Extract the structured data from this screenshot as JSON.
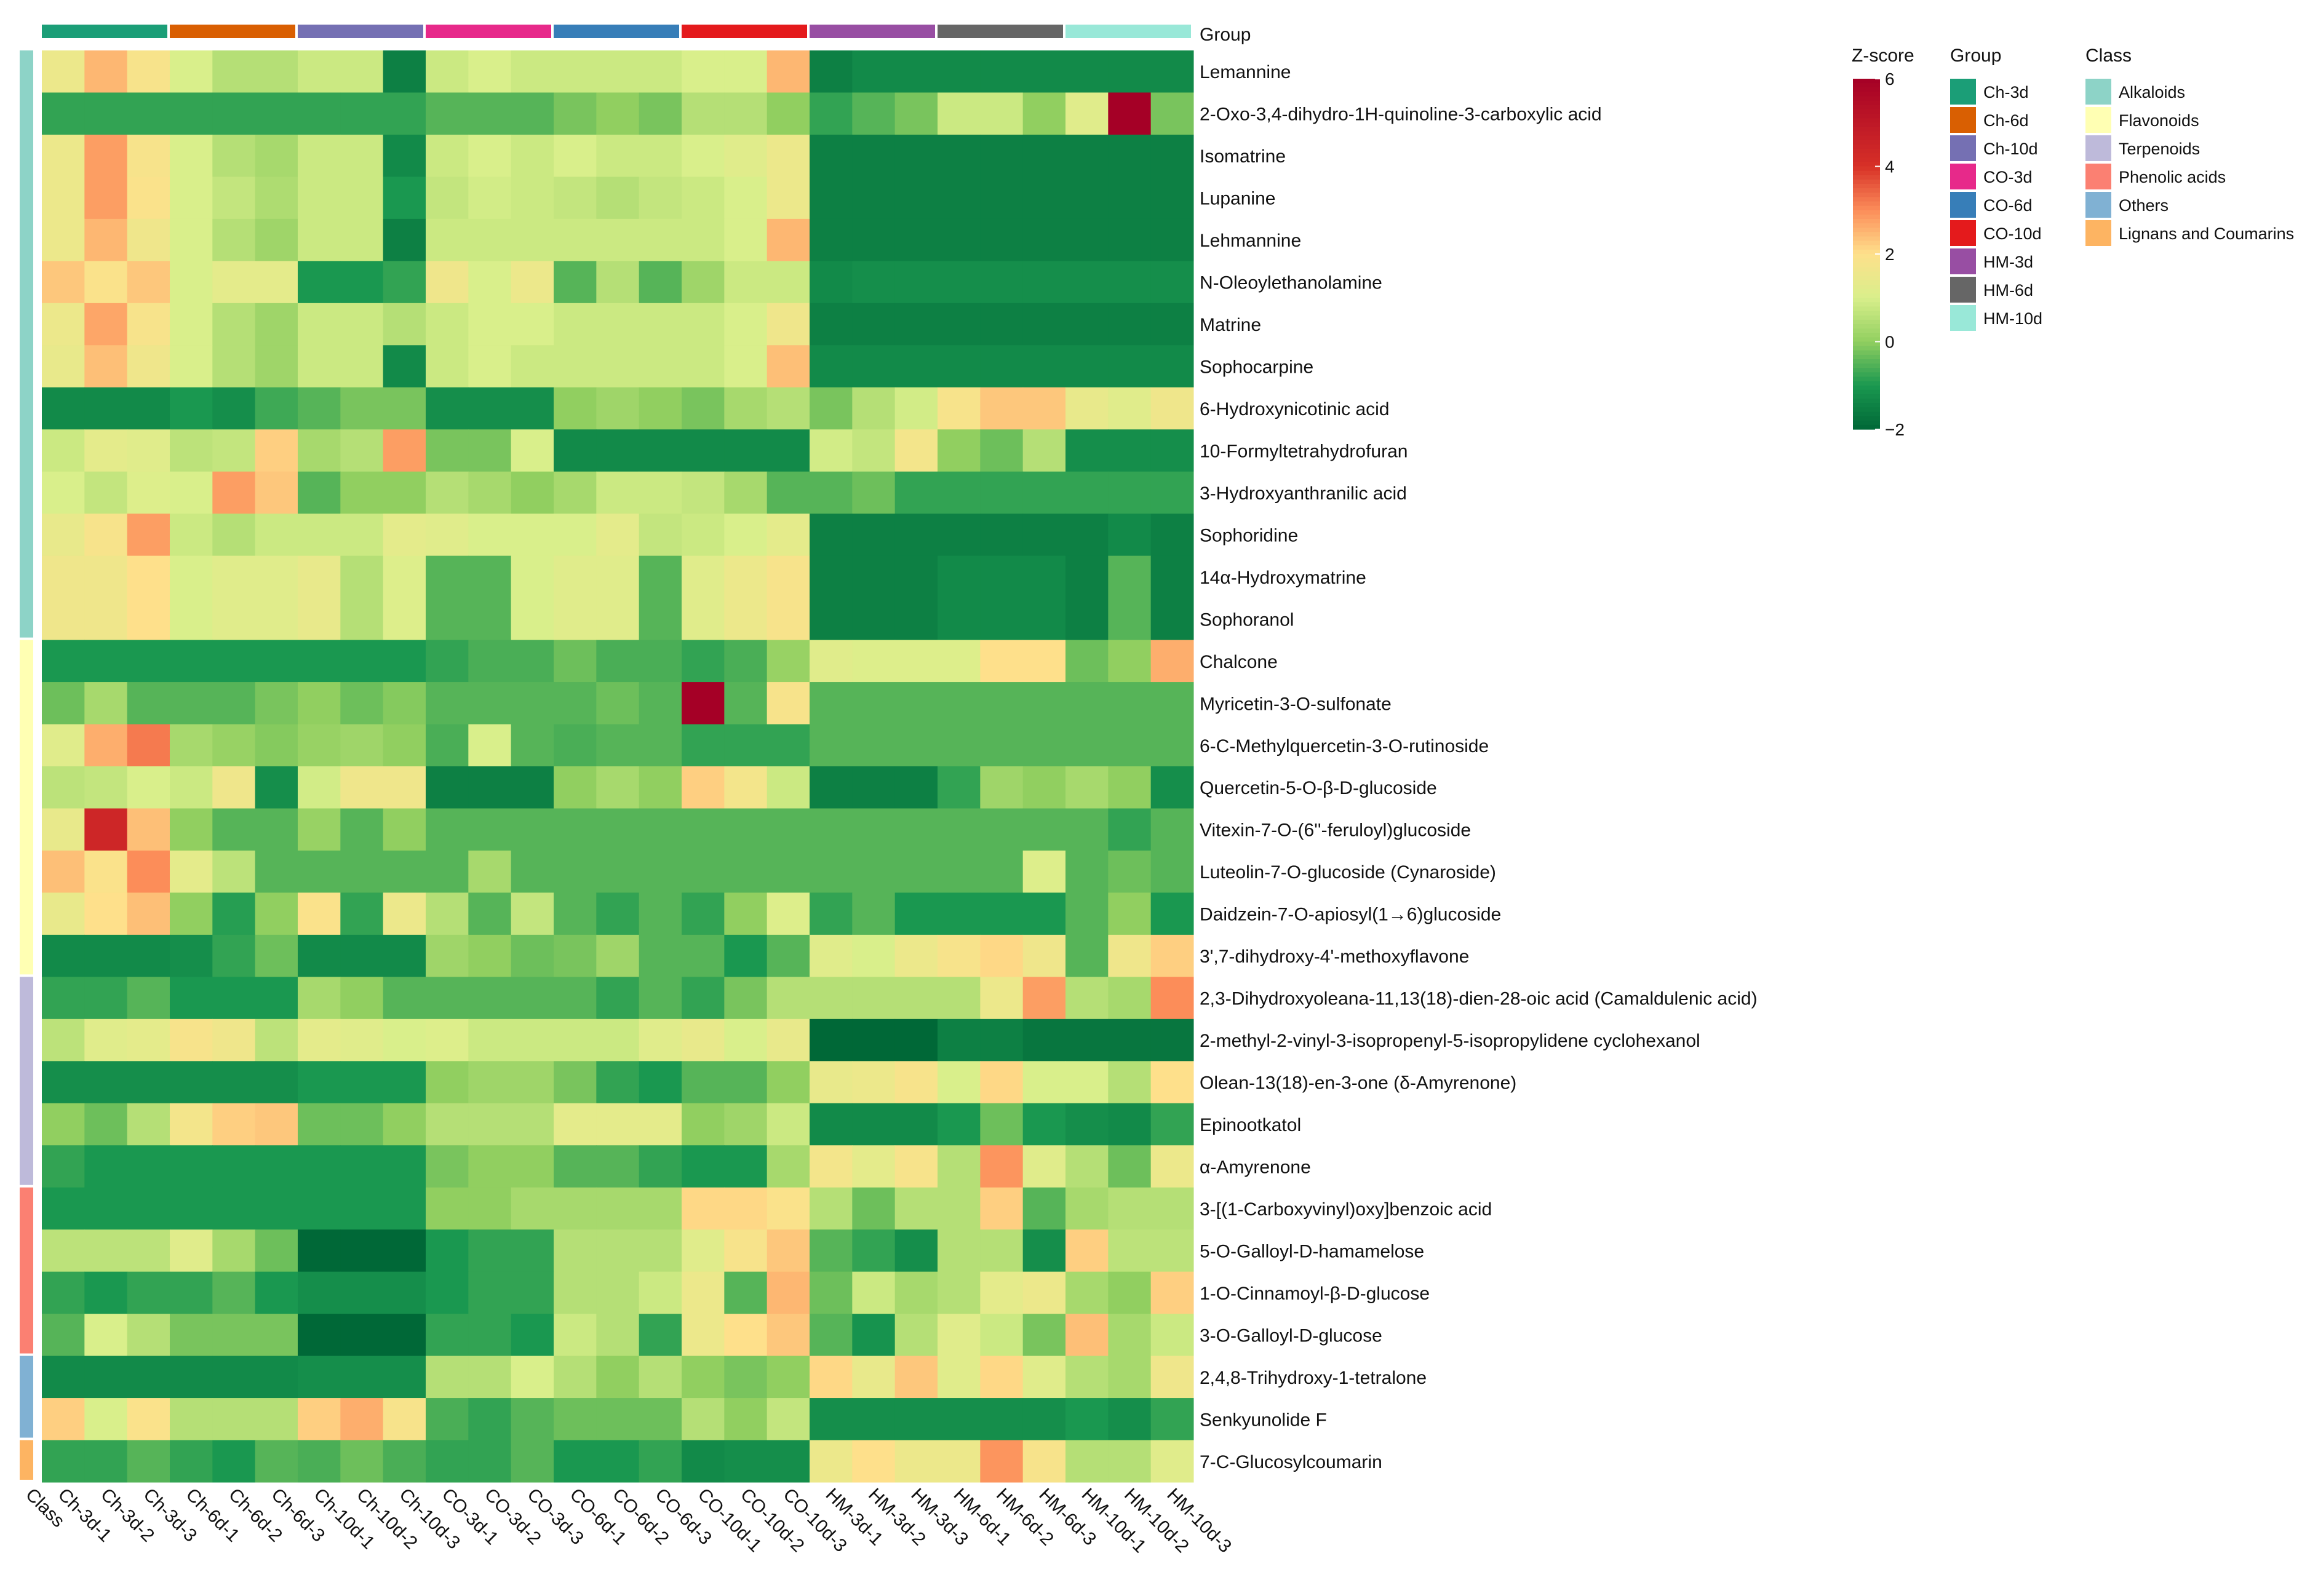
{
  "chart_data": {
    "type": "heatmap",
    "title": "",
    "columns": [
      "Ch-3d-1",
      "Ch-3d-2",
      "Ch-3d-3",
      "Ch-6d-1",
      "Ch-6d-2",
      "Ch-6d-3",
      "Ch-10d-1",
      "Ch-10d-2",
      "Ch-10d-3",
      "CO-3d-1",
      "CO-3d-2",
      "CO-3d-3",
      "CO-6d-1",
      "CO-6d-2",
      "CO-6d-3",
      "CO-10d-1",
      "CO-10d-2",
      "CO-10d-3",
      "HM-3d-1",
      "HM-3d-2",
      "HM-3d-3",
      "HM-6d-1",
      "HM-6d-2",
      "HM-6d-3",
      "HM-10d-1",
      "HM-10d-2",
      "HM-10d-3"
    ],
    "class_axis_label": "Class",
    "group_annotation_label": "Group",
    "column_groups": [
      "Ch-3d",
      "Ch-6d",
      "Ch-10d",
      "CO-3d",
      "CO-6d",
      "CO-10d",
      "HM-3d",
      "HM-6d",
      "HM-10d"
    ],
    "rows": [
      "Lemannine",
      "2-Oxo-3,4-dihydro-1H-quinoline-3-carboxylic acid",
      "Isomatrine",
      "Lupanine",
      "Lehmannine",
      "N-Oleoylethanolamine",
      "Matrine",
      "Sophocarpine",
      "6-Hydroxynicotinic acid",
      "10-Formyltetrahydrofuran",
      "3-Hydroxyanthranilic acid",
      "Sophoridine",
      "14α-Hydroxymatrine",
      "Sophoranol",
      "Chalcone",
      "Myricetin-3-O-sulfonate",
      "6-C-Methylquercetin-3-O-rutinoside",
      "Quercetin-5-O-β-D-glucoside",
      "Vitexin-7-O-(6''-feruloyl)glucoside",
      "Luteolin-7-O-glucoside (Cynaroside)",
      "Daidzein-7-O-apiosyl(1→6)glucoside",
      "3',7-dihydroxy-4'-methoxyflavone",
      "2,3-Dihydroxyoleana-11,13(18)-dien-28-oic acid (Camaldulenic acid)",
      "2-methyl-2-vinyl-3-isopropenyl-5-isopropylidene cyclohexanol",
      "Olean-13(18)-en-3-one (δ-Amyrenone)",
      "Epinootkatol",
      "α-Amyrenone",
      "3-[(1-Carboxyvinyl)oxy]benzoic acid",
      "5-O-Galloyl-D-hamamelose",
      "1-O-Cinnamoyl-β-D-glucose",
      "3-O-Galloyl-D-glucose",
      "2,4,8-Trihydroxy-1-tetralone",
      "Senkyunolide F",
      "7-C-Glucosylcoumarin"
    ],
    "row_classes": [
      "Alkaloids",
      "Alkaloids",
      "Alkaloids",
      "Alkaloids",
      "Alkaloids",
      "Alkaloids",
      "Alkaloids",
      "Alkaloids",
      "Alkaloids",
      "Alkaloids",
      "Alkaloids",
      "Alkaloids",
      "Alkaloids",
      "Alkaloids",
      "Flavonoids",
      "Flavonoids",
      "Flavonoids",
      "Flavonoids",
      "Flavonoids",
      "Flavonoids",
      "Flavonoids",
      "Flavonoids",
      "Terpenoids",
      "Terpenoids",
      "Terpenoids",
      "Terpenoids",
      "Terpenoids",
      "Phenolic acids",
      "Phenolic acids",
      "Phenolic acids",
      "Phenolic acids",
      "Others",
      "Others",
      "Lignans and Coumarins"
    ],
    "values": [
      [
        1.5,
        2.5,
        1.8,
        1,
        0.5,
        0.5,
        0.8,
        0.8,
        -1.5,
        0.8,
        1,
        0.8,
        0.8,
        0.8,
        0.8,
        1,
        1,
        2.5,
        -1.5,
        -1.3,
        -1.3,
        -1.3,
        -1.3,
        -1.3,
        -1.3,
        -1.3,
        -1.3
      ],
      [
        -0.8,
        -0.8,
        -0.8,
        -0.8,
        -0.8,
        -0.8,
        -0.8,
        -0.8,
        -0.8,
        -0.5,
        -0.5,
        -0.5,
        -0.2,
        0,
        -0.2,
        0.5,
        0.5,
        0,
        -0.8,
        -0.5,
        -0.2,
        0.8,
        0.8,
        0,
        1.2,
        6,
        -0.2
      ],
      [
        1.5,
        2.8,
        1.8,
        1,
        0.5,
        0.3,
        0.8,
        0.8,
        -1.3,
        0.8,
        1,
        0.8,
        1,
        0.8,
        0.8,
        1,
        1.2,
        1.5,
        -1.5,
        -1.5,
        -1.5,
        -1.5,
        -1.5,
        -1.5,
        -1.5,
        -1.5,
        -1.5
      ],
      [
        1.5,
        2.8,
        1.9,
        1,
        0.7,
        0.4,
        0.8,
        0.8,
        -1,
        0.7,
        0.9,
        0.8,
        0.7,
        0.5,
        0.7,
        0.8,
        1,
        1.5,
        -1.5,
        -1.5,
        -1.5,
        -1.5,
        -1.5,
        -1.5,
        -1.5,
        -1.5,
        -1.5
      ],
      [
        1.5,
        2.5,
        1.6,
        1,
        0.5,
        0.2,
        0.8,
        0.8,
        -1.5,
        0.8,
        0.8,
        0.8,
        0.8,
        0.8,
        0.8,
        0.8,
        1,
        2.5,
        -1.5,
        -1.5,
        -1.5,
        -1.5,
        -1.5,
        -1.5,
        -1.5,
        -1.5,
        -1.5
      ],
      [
        2.3,
        1.9,
        2.3,
        1,
        1.3,
        1.3,
        -1,
        -1,
        -0.8,
        1.6,
        1,
        1.5,
        -0.5,
        0.5,
        -0.5,
        0.2,
        0.8,
        0.8,
        -1.3,
        -1.2,
        -1.2,
        -1.2,
        -1.2,
        -1.2,
        -1.2,
        -1.2,
        -1.2
      ],
      [
        1.5,
        2.7,
        1.8,
        1,
        0.5,
        0.2,
        0.8,
        0.8,
        0.5,
        0.8,
        1,
        1,
        0.8,
        0.8,
        0.8,
        0.8,
        1,
        1.6,
        -1.5,
        -1.5,
        -1.5,
        -1.5,
        -1.5,
        -1.5,
        -1.5,
        -1.5,
        -1.5
      ],
      [
        1.4,
        2.4,
        1.6,
        1,
        0.5,
        0.2,
        0.8,
        0.8,
        -1.3,
        0.8,
        1,
        0.8,
        0.8,
        0.8,
        0.8,
        0.8,
        1,
        2.4,
        -1.3,
        -1.3,
        -1.3,
        -1.3,
        -1.3,
        -1.3,
        -1.3,
        -1.3,
        -1.3
      ],
      [
        -1.3,
        -1.3,
        -1.3,
        -1,
        -1.2,
        -0.7,
        -0.5,
        -0.2,
        -0.2,
        -1.2,
        -1.2,
        -1.2,
        0,
        0.2,
        0,
        -0.2,
        0.3,
        0.5,
        -0.2,
        0.5,
        0.9,
        1.8,
        2.3,
        2.3,
        1.4,
        1.2,
        1.6
      ],
      [
        0.8,
        1.3,
        1.2,
        0.6,
        0.7,
        2.2,
        0.3,
        0.5,
        2.8,
        -0.2,
        -0.2,
        1,
        -1.3,
        -1.3,
        -1.3,
        -1.3,
        -1.3,
        -1.3,
        0.9,
        0.7,
        1.7,
        0,
        -0.3,
        0.5,
        -1.2,
        -1.2,
        -1.2
      ],
      [
        1,
        0.7,
        1.1,
        1,
        2.8,
        2.3,
        -0.5,
        0,
        0,
        0.5,
        0.3,
        0,
        0.3,
        0.8,
        0.8,
        0.7,
        0.3,
        -0.5,
        -0.5,
        -0.3,
        -0.8,
        -0.8,
        -0.8,
        -0.8,
        -0.8,
        -0.8,
        -0.8
      ],
      [
        1.4,
        1.8,
        2.8,
        0.8,
        0.5,
        0.8,
        0.8,
        0.8,
        1.3,
        1.2,
        1,
        1,
        1,
        1.3,
        0.7,
        0.8,
        1,
        1.3,
        -1.5,
        -1.5,
        -1.5,
        -1.5,
        -1.5,
        -1.5,
        -1.5,
        -1.3,
        -1.5
      ],
      [
        1.6,
        1.6,
        2,
        1,
        1.2,
        1.2,
        1.4,
        0.5,
        1.1,
        -0.5,
        -0.5,
        1,
        1.2,
        1.2,
        -0.5,
        1.2,
        1.5,
        1.8,
        -1.5,
        -1.5,
        -1.5,
        -1.3,
        -1.3,
        -1.3,
        -1.5,
        -0.5,
        -1.5
      ],
      [
        1.6,
        1.6,
        2,
        1,
        1.2,
        1.2,
        1.4,
        0.5,
        1.1,
        -0.5,
        -0.5,
        1,
        1.2,
        1.2,
        -0.5,
        1.2,
        1.5,
        1.8,
        -1.5,
        -1.5,
        -1.5,
        -1.3,
        -1.3,
        -1.3,
        -1.5,
        -0.5,
        -1.5
      ],
      [
        -1,
        -1,
        -1,
        -1,
        -1,
        -1,
        -1,
        -1,
        -1,
        -0.8,
        -0.6,
        -0.6,
        -0.3,
        -0.6,
        -0.6,
        -0.8,
        -0.6,
        0.1,
        1.2,
        1.1,
        1.1,
        1.1,
        2,
        2,
        -0.3,
        0,
        2.6
      ],
      [
        -0.3,
        0.3,
        -0.5,
        -0.5,
        -0.5,
        -0.2,
        0,
        -0.3,
        -0.1,
        -0.5,
        -0.5,
        -0.5,
        -0.5,
        -0.3,
        -0.5,
        6,
        -0.5,
        1.8,
        -0.5,
        -0.5,
        -0.5,
        -0.5,
        -0.5,
        -0.5,
        -0.5,
        -0.5,
        -0.5
      ],
      [
        1.2,
        2.6,
        3.2,
        0.3,
        0.1,
        -0.1,
        0.1,
        0.2,
        0,
        -0.6,
        1,
        -0.5,
        -0.6,
        -0.5,
        -0.5,
        -0.8,
        -0.8,
        -0.8,
        -0.5,
        -0.5,
        -0.5,
        -0.5,
        -0.5,
        -0.5,
        -0.5,
        -0.5,
        -0.5
      ],
      [
        0.6,
        0.7,
        1,
        0.8,
        1.6,
        -1.2,
        0.9,
        1.6,
        1.6,
        -1.5,
        -1.5,
        -1.5,
        0,
        0.3,
        0,
        2.2,
        1.7,
        0.8,
        -1.5,
        -1.5,
        -1.5,
        -0.8,
        0.2,
        0,
        0.3,
        0,
        -1.2
      ],
      [
        1.4,
        4.4,
        2.4,
        0,
        -0.5,
        -0.5,
        0.1,
        -0.5,
        0,
        -0.5,
        -0.5,
        -0.5,
        -0.5,
        -0.5,
        -0.5,
        -0.5,
        -0.5,
        -0.5,
        -0.5,
        -0.5,
        -0.5,
        -0.5,
        -0.5,
        -0.5,
        -0.5,
        -0.8,
        -0.5
      ],
      [
        2.4,
        1.9,
        3,
        1.3,
        0.6,
        -0.5,
        -0.5,
        -0.5,
        -0.5,
        -0.5,
        0.3,
        -0.5,
        -0.5,
        -0.5,
        -0.5,
        -0.5,
        -0.5,
        -0.5,
        -0.5,
        -0.5,
        -0.5,
        -0.5,
        -0.5,
        1.1,
        -0.5,
        -0.3,
        -0.5
      ],
      [
        1.4,
        2,
        2.4,
        0,
        -0.9,
        0,
        1.9,
        -0.8,
        1.5,
        0.5,
        -0.5,
        0.7,
        -0.5,
        -0.8,
        -0.5,
        -0.8,
        0,
        1.1,
        -0.8,
        -0.5,
        -1,
        -1,
        -1,
        -1,
        -0.5,
        0,
        -1
      ],
      [
        -1.3,
        -1.3,
        -1.3,
        -1.2,
        -0.8,
        -0.3,
        -1.3,
        -1.3,
        -1.3,
        0.2,
        0,
        -0.3,
        -0.2,
        0.2,
        -0.5,
        -0.5,
        -1,
        -0.5,
        1.2,
        1,
        1.5,
        1.8,
        2.1,
        1.6,
        -0.5,
        1.6,
        2.2
      ],
      [
        -0.8,
        -0.8,
        -0.5,
        -1,
        -1,
        -1,
        0.3,
        0,
        -0.5,
        -0.5,
        -0.5,
        -0.5,
        -0.5,
        -0.8,
        -0.5,
        -0.8,
        -0.2,
        0.5,
        0.5,
        0.5,
        0.5,
        0.5,
        1.5,
        2.8,
        0.5,
        0.3,
        3
      ],
      [
        0.6,
        1.2,
        1.3,
        1.8,
        1.6,
        0.6,
        1.3,
        1.2,
        1,
        1.1,
        0.8,
        0.8,
        0.8,
        0.8,
        1.2,
        1.4,
        1,
        1.4,
        -2,
        -2,
        -2,
        -1.5,
        -1.5,
        -1.7,
        -1.7,
        -1.7,
        -1.7
      ],
      [
        -1.2,
        -1.2,
        -1.2,
        -1.2,
        -1.2,
        -1.2,
        -1,
        -1,
        -1,
        0,
        0.2,
        0.2,
        -0.2,
        -0.8,
        -1,
        -0.5,
        -0.5,
        0,
        1.4,
        1.5,
        1.8,
        1,
        2.1,
        1,
        1,
        0.5,
        2
      ],
      [
        0,
        -0.3,
        0.5,
        1.7,
        2.2,
        2.3,
        -0.3,
        -0.3,
        0,
        0.5,
        0.5,
        0.5,
        1.3,
        1.3,
        1.3,
        0,
        0.2,
        0.8,
        -1.3,
        -1.3,
        -1.3,
        -1,
        -0.3,
        -1,
        -1.2,
        -1.3,
        -0.8
      ],
      [
        -0.8,
        -1,
        -1,
        -1,
        -1,
        -1,
        -1,
        -1,
        -1,
        -0.2,
        0,
        0,
        -0.5,
        -0.5,
        -0.8,
        -1,
        -1,
        0.3,
        1.7,
        1.3,
        1.8,
        0.5,
        2.9,
        1.2,
        0.5,
        -0.3,
        1.5
      ],
      [
        -1,
        -1,
        -1,
        -1,
        -1,
        -1,
        -1,
        -1,
        -1,
        0,
        0,
        0.3,
        0.3,
        0.3,
        0.3,
        2.1,
        2.1,
        1.9,
        0.5,
        -0.3,
        0.5,
        0.5,
        2.2,
        -0.5,
        0.3,
        0.5,
        0.5
      ],
      [
        0.6,
        0.6,
        0.6,
        1.2,
        0.3,
        -0.3,
        -2,
        -2,
        -2,
        -1,
        -0.8,
        -0.8,
        0.5,
        0.5,
        0.5,
        1.2,
        1.8,
        2.3,
        -0.5,
        -0.8,
        -1.2,
        0.5,
        0.5,
        -1.2,
        2.2,
        0.6,
        0.6
      ],
      [
        -0.8,
        -1,
        -0.8,
        -0.8,
        -0.5,
        -1,
        -1.2,
        -1.2,
        -1.2,
        -1,
        -0.8,
        -0.8,
        0.5,
        0.5,
        0.8,
        1.5,
        -0.5,
        2.5,
        -0.3,
        0.8,
        0.3,
        0.5,
        1.3,
        1.5,
        0.3,
        0,
        2.2
      ],
      [
        -0.5,
        1,
        0.5,
        -0.2,
        -0.2,
        -0.2,
        -2,
        -2,
        -2,
        -0.8,
        -0.8,
        -1,
        0.8,
        0.5,
        -0.8,
        1.5,
        2,
        2.3,
        -0.5,
        -1.1,
        0.5,
        1.2,
        0.8,
        -0.2,
        2.4,
        0.3,
        0.8
      ],
      [
        -1.3,
        -1.3,
        -1.3,
        -1.3,
        -1.3,
        -1.3,
        -1.2,
        -1.2,
        -1.2,
        0.5,
        0.5,
        1,
        0.5,
        0,
        0.5,
        0,
        -0.2,
        0,
        2.1,
        1.4,
        2.3,
        1.2,
        2.1,
        1.2,
        0.5,
        0.3,
        1.6
      ],
      [
        2.2,
        1,
        1.9,
        0.5,
        0.5,
        0.5,
        2.2,
        2.6,
        1.8,
        -0.6,
        -0.8,
        -0.5,
        -0.3,
        -0.3,
        -0.3,
        0.5,
        0,
        0.7,
        -1.2,
        -1.2,
        -1.2,
        -1.2,
        -1.2,
        -1.2,
        -1,
        -1.2,
        -0.8
      ],
      [
        -0.8,
        -0.8,
        -0.5,
        -0.8,
        -1,
        -0.5,
        -0.6,
        -0.3,
        -0.6,
        -0.8,
        -0.8,
        -0.5,
        -1,
        -1,
        -0.8,
        -1.3,
        -1.2,
        -1.2,
        1.5,
        2,
        1.5,
        1.5,
        2.9,
        1.8,
        0.5,
        0.5,
        1.2
      ]
    ],
    "colorbar": {
      "title": "Z-score",
      "range": [
        -2,
        6
      ],
      "ticks": [
        6,
        4,
        2,
        0,
        -2
      ]
    },
    "legends": [
      {
        "title": "Group",
        "items": [
          {
            "label": "Ch-3d",
            "color": "#1B9E77"
          },
          {
            "label": "Ch-6d",
            "color": "#D95F02"
          },
          {
            "label": "Ch-10d",
            "color": "#7570B3"
          },
          {
            "label": "CO-3d",
            "color": "#E7298A"
          },
          {
            "label": "CO-6d",
            "color": "#377EB8"
          },
          {
            "label": "CO-10d",
            "color": "#E41A1C"
          },
          {
            "label": "HM-3d",
            "color": "#984EA3"
          },
          {
            "label": "HM-6d",
            "color": "#666666"
          },
          {
            "label": "HM-10d",
            "color": "#99E8D8"
          }
        ]
      },
      {
        "title": "Class",
        "items": [
          {
            "label": "Alkaloids",
            "color": "#8DD3C7"
          },
          {
            "label": "Flavonoids",
            "color": "#FFFFB3"
          },
          {
            "label": "Terpenoids",
            "color": "#BEBADA"
          },
          {
            "label": "Phenolic acids",
            "color": "#FB8072"
          },
          {
            "label": "Others",
            "color": "#80B1D3"
          },
          {
            "label": "Lignans and Coumarins",
            "color": "#FDB462"
          }
        ]
      }
    ]
  }
}
